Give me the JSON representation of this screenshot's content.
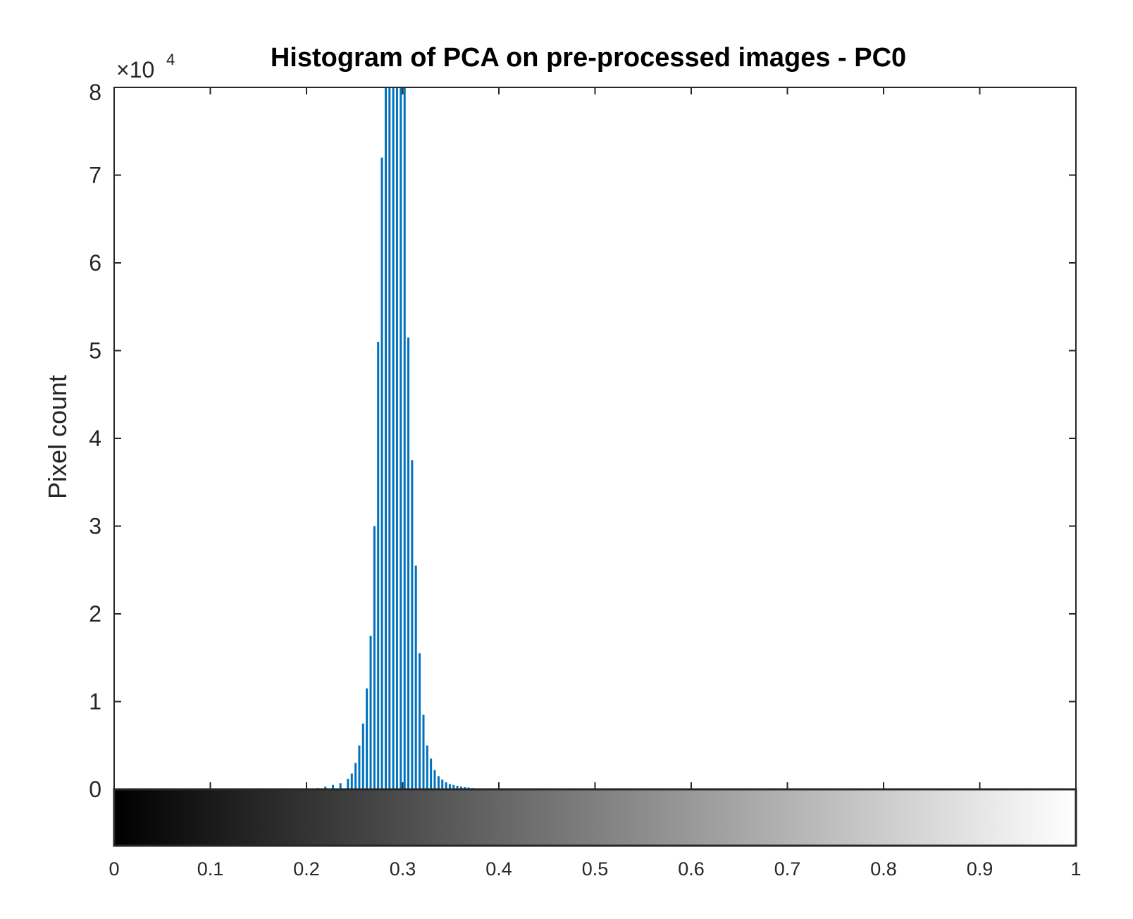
{
  "chart_data": {
    "type": "bar",
    "title": "Histogram of PCA on pre-processed images - PC0",
    "xlabel": "",
    "ylabel": "Pixel count",
    "y_exponent_base": "×10",
    "y_exponent_power": "4",
    "xlim": [
      0,
      1
    ],
    "ylim": [
      0,
      80000
    ],
    "x_ticks": [
      "0",
      "0.1",
      "0.2",
      "0.3",
      "0.4",
      "0.5",
      "0.6",
      "0.7",
      "0.8",
      "0.9",
      "1"
    ],
    "y_ticks": [
      "0",
      "1",
      "2",
      "3",
      "4",
      "5",
      "6",
      "7",
      "8"
    ],
    "bar_color": "#0072BD",
    "colorbar": {
      "from": "#000000",
      "to": "#ffffff",
      "range": [
        0,
        1
      ]
    },
    "x": [
      0.2039,
      0.2118,
      0.2196,
      0.2275,
      0.2353,
      0.2431,
      0.2471,
      0.251,
      0.2549,
      0.2588,
      0.2627,
      0.2667,
      0.2706,
      0.2745,
      0.2784,
      0.2824,
      0.2863,
      0.2902,
      0.2941,
      0.298,
      0.302,
      0.3059,
      0.3098,
      0.3137,
      0.3176,
      0.3216,
      0.3255,
      0.3294,
      0.3333,
      0.3373,
      0.3412,
      0.3451,
      0.349,
      0.3529,
      0.3569,
      0.3608,
      0.3647,
      0.3686,
      0.3725,
      0.3765
    ],
    "values": [
      100,
      150,
      300,
      500,
      700,
      1200,
      1800,
      3000,
      5000,
      7500,
      11500,
      17500,
      30000,
      51000,
      72000,
      81000,
      81000,
      81000,
      81000,
      81000,
      80000,
      51500,
      37500,
      25500,
      15500,
      8500,
      5000,
      3500,
      2200,
      1500,
      1100,
      800,
      600,
      500,
      400,
      300,
      250,
      200,
      150,
      100
    ]
  }
}
